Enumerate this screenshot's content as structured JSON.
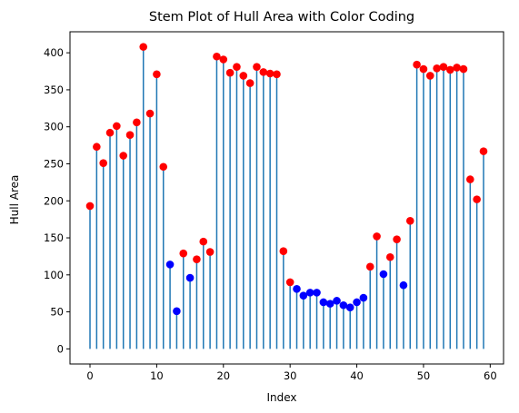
{
  "chart_data": {
    "type": "stem",
    "title": "Stem Plot of Hull Area with Color Coding",
    "xlabel": "Index",
    "ylabel": "Hull Area",
    "xlim": [
      -3,
      62
    ],
    "ylim": [
      -20.4,
      428.4
    ],
    "xticks": [
      0,
      10,
      20,
      30,
      40,
      50,
      60
    ],
    "yticks": [
      0,
      50,
      100,
      150,
      200,
      250,
      300,
      350,
      400
    ],
    "stem_color": "#1f77b4",
    "color_high": "#ff0000",
    "color_low": "#0000ff",
    "x": [
      0,
      1,
      2,
      3,
      4,
      5,
      6,
      7,
      8,
      9,
      10,
      11,
      12,
      13,
      14,
      15,
      16,
      17,
      18,
      19,
      20,
      21,
      22,
      23,
      24,
      25,
      26,
      27,
      28,
      29,
      30,
      31,
      32,
      33,
      34,
      35,
      36,
      37,
      38,
      39,
      40,
      41,
      42,
      43,
      44,
      45,
      46,
      47,
      48,
      49,
      50,
      51,
      52,
      53,
      54,
      55,
      56,
      57,
      58,
      59
    ],
    "values": [
      193,
      273,
      251,
      292,
      301,
      261,
      289,
      306,
      408,
      318,
      371,
      246,
      114,
      51,
      129,
      96,
      121,
      145,
      131,
      395,
      391,
      373,
      381,
      369,
      359,
      381,
      374,
      372,
      371,
      132,
      90,
      81,
      72,
      76,
      76,
      63,
      61,
      65,
      59,
      56,
      63,
      69,
      111,
      152,
      101,
      124,
      148,
      86,
      173,
      384,
      378,
      369,
      379,
      381,
      377,
      380,
      378,
      229,
      202,
      267
    ],
    "point_colors": [
      "red",
      "red",
      "red",
      "red",
      "red",
      "red",
      "red",
      "red",
      "red",
      "red",
      "red",
      "red",
      "blue",
      "blue",
      "red",
      "blue",
      "red",
      "red",
      "red",
      "red",
      "red",
      "red",
      "red",
      "red",
      "red",
      "red",
      "red",
      "red",
      "red",
      "red",
      "red",
      "blue",
      "blue",
      "blue",
      "blue",
      "blue",
      "blue",
      "blue",
      "blue",
      "blue",
      "blue",
      "blue",
      "red",
      "red",
      "blue",
      "red",
      "red",
      "blue",
      "red",
      "red",
      "red",
      "red",
      "red",
      "red",
      "red",
      "red",
      "red",
      "red",
      "red",
      "red"
    ]
  }
}
